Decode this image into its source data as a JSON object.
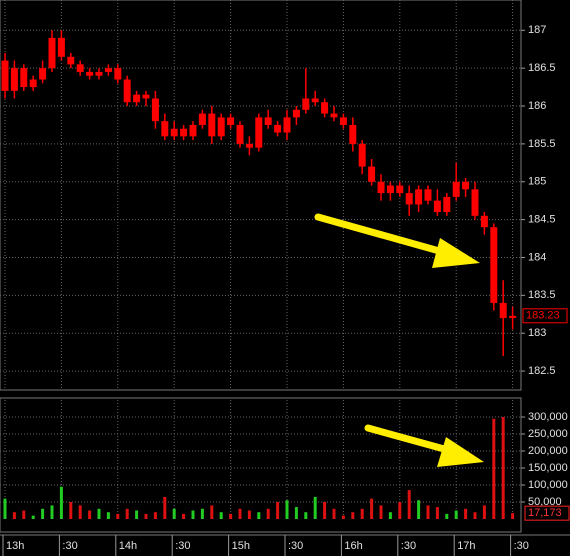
{
  "chart_data": [
    {
      "type": "candlestick",
      "color": "#ff0000",
      "grid": true,
      "open": [
        186.6,
        186.2,
        186.5,
        186.25,
        186.35,
        186.5,
        186.9,
        186.65,
        186.55,
        186.45,
        186.4,
        186.45,
        186.5,
        186.35,
        186.05,
        186.15,
        186.1,
        185.8,
        185.6,
        185.7,
        185.6,
        185.75,
        185.9,
        185.6,
        185.85,
        185.75,
        185.5,
        185.45,
        185.85,
        185.75,
        185.65,
        185.85,
        185.95,
        186.1,
        186.05,
        185.9,
        185.85,
        185.75,
        185.5,
        185.2,
        185.0,
        184.85,
        184.95,
        184.85,
        184.7,
        184.9,
        184.75,
        184.6,
        184.8,
        185.0,
        184.9,
        184.55,
        184.4,
        183.4,
        183.2
      ],
      "high": [
        186.7,
        186.6,
        186.55,
        186.4,
        186.6,
        187.0,
        187.0,
        186.7,
        186.6,
        186.5,
        186.5,
        186.55,
        186.55,
        186.4,
        186.2,
        186.2,
        186.2,
        185.9,
        185.8,
        185.75,
        185.8,
        185.95,
        186.0,
        185.9,
        185.9,
        185.8,
        185.6,
        185.9,
        185.95,
        185.8,
        185.95,
        186.0,
        186.5,
        186.2,
        186.1,
        186.0,
        185.9,
        185.85,
        185.55,
        185.3,
        185.1,
        185.0,
        185.0,
        184.95,
        184.95,
        184.95,
        184.9,
        184.85,
        185.25,
        185.05,
        185.0,
        184.6,
        184.45,
        183.7,
        183.35
      ],
      "low": [
        186.1,
        186.1,
        186.2,
        186.2,
        186.3,
        186.45,
        186.6,
        186.5,
        186.4,
        186.35,
        186.35,
        186.4,
        186.3,
        186.0,
        186.0,
        186.0,
        185.7,
        185.55,
        185.55,
        185.55,
        185.55,
        185.7,
        185.5,
        185.55,
        185.7,
        185.45,
        185.35,
        185.4,
        185.7,
        185.6,
        185.55,
        185.75,
        185.9,
        186.0,
        185.85,
        185.8,
        185.7,
        185.4,
        185.1,
        184.95,
        184.75,
        184.75,
        184.8,
        184.55,
        184.6,
        184.7,
        184.55,
        184.55,
        184.75,
        184.8,
        184.5,
        184.3,
        183.3,
        182.7,
        183.05
      ],
      "close": [
        186.2,
        186.5,
        186.25,
        186.35,
        186.5,
        186.9,
        186.65,
        186.55,
        186.45,
        186.4,
        186.45,
        186.5,
        186.35,
        186.05,
        186.15,
        186.1,
        185.8,
        185.6,
        185.7,
        185.6,
        185.75,
        185.9,
        185.6,
        185.85,
        185.75,
        185.5,
        185.45,
        185.85,
        185.75,
        185.65,
        185.85,
        185.95,
        186.1,
        186.05,
        185.9,
        185.85,
        185.75,
        185.5,
        185.2,
        185.0,
        184.85,
        184.95,
        184.85,
        184.7,
        184.9,
        184.75,
        184.6,
        184.8,
        185.0,
        184.9,
        184.55,
        184.4,
        183.4,
        183.2,
        183.23
      ],
      "ylim": [
        182.25,
        187.4
      ],
      "yticks": [
        182.5,
        183,
        183.5,
        184,
        184.5,
        185,
        185.5,
        186,
        186.5,
        187
      ],
      "last_value": 183.23
    },
    {
      "type": "bar",
      "grid": true,
      "categories": [
        "13h",
        null,
        null,
        null,
        null,
        null,
        ":30",
        null,
        null,
        null,
        null,
        null,
        "14h",
        null,
        null,
        null,
        null,
        null,
        ":30",
        null,
        null,
        null,
        null,
        null,
        "15h",
        null,
        null,
        null,
        null,
        null,
        ":30",
        null,
        null,
        null,
        null,
        null,
        "16h",
        null,
        null,
        null,
        null,
        null,
        ":30",
        null,
        null,
        null,
        null,
        null,
        "17h",
        null,
        null,
        null,
        null,
        null,
        ":30"
      ],
      "values": [
        60000,
        20000,
        25000,
        10000,
        30000,
        40000,
        95000,
        50000,
        40000,
        25000,
        30000,
        20000,
        15000,
        30000,
        25000,
        15000,
        20000,
        65000,
        30000,
        15000,
        25000,
        30000,
        40000,
        20000,
        15000,
        30000,
        25000,
        20000,
        30000,
        50000,
        55000,
        35000,
        20000,
        65000,
        50000,
        30000,
        10000,
        20000,
        30000,
        60000,
        40000,
        20000,
        50000,
        85000,
        55000,
        40000,
        35000,
        15000,
        25000,
        30000,
        20000,
        40000,
        295000,
        300000,
        17173
      ],
      "colors": [
        "#22cc22",
        "#dd1111",
        "#dd1111",
        "#22cc22",
        "#22cc22",
        "#22cc22",
        "#22cc22",
        "#dd1111",
        "#dd1111",
        "#dd1111",
        "#22cc22",
        "#22cc22",
        "#dd1111",
        "#dd1111",
        "#22cc22",
        "#dd1111",
        "#dd1111",
        "#dd1111",
        "#22cc22",
        "#dd1111",
        "#22cc22",
        "#22cc22",
        "#dd1111",
        "#22cc22",
        "#dd1111",
        "#dd1111",
        "#dd1111",
        "#22cc22",
        "#dd1111",
        "#dd1111",
        "#22cc22",
        "#22cc22",
        "#22cc22",
        "#22cc22",
        "#dd1111",
        "#dd1111",
        "#dd1111",
        "#dd1111",
        "#dd1111",
        "#dd1111",
        "#dd1111",
        "#22cc22",
        "#dd1111",
        "#dd1111",
        "#22cc22",
        "#dd1111",
        "#dd1111",
        "#22cc22",
        "#22cc22",
        "#dd1111",
        "#dd1111",
        "#dd1111",
        "#dd1111",
        "#dd1111",
        "#dd1111"
      ],
      "ylim": [
        0,
        350000
      ],
      "yticks": [
        {
          "value": 50000,
          "label": "50,000"
        },
        {
          "value": 100000,
          "label": "100,000"
        },
        {
          "value": 150000,
          "label": "150,000"
        },
        {
          "value": 200000,
          "label": "200,000"
        },
        {
          "value": 250000,
          "label": "250,000"
        },
        {
          "value": 300000,
          "label": "300,000"
        }
      ],
      "last_value": {
        "value": 17173,
        "label": "17,173"
      }
    }
  ]
}
